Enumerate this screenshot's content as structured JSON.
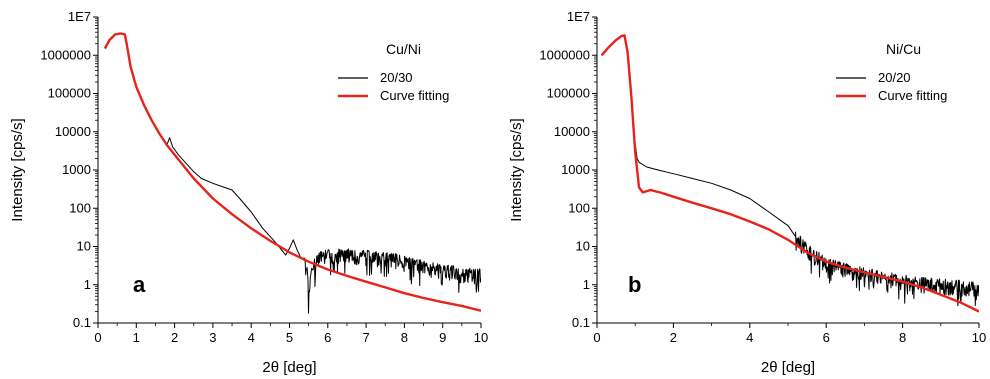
{
  "chart_data": [
    {
      "type": "line",
      "panel_label": "a",
      "xlabel": "2θ [deg]",
      "ylabel": "Intensity [cps/s]",
      "xlim": [
        0,
        10
      ],
      "ylim": [
        0.1,
        10000000
      ],
      "y_scale": "log",
      "x_ticks": [
        "0",
        "1",
        "2",
        "3",
        "4",
        "5",
        "6",
        "7",
        "8",
        "9",
        "10"
      ],
      "y_ticks": [
        "0.1",
        "1",
        "10",
        "100",
        "1000",
        "10000",
        "100000",
        "1000000",
        "1E7"
      ],
      "legend_title": "Cu/Ni",
      "legend_placement": "top-right",
      "grid": false,
      "series": [
        {
          "name": "20/30",
          "color": "#000000",
          "x": [
            0.18,
            0.3,
            0.45,
            0.6,
            0.7,
            0.75,
            0.85,
            1.0,
            1.2,
            1.4,
            1.6,
            1.8,
            1.87,
            1.95,
            2.1,
            2.3,
            2.5,
            2.7,
            3.0,
            3.3,
            3.5,
            3.7,
            4.0,
            4.3,
            4.6,
            4.8,
            4.9,
            5.0,
            5.1,
            5.2,
            5.3,
            5.45,
            5.5,
            5.6,
            5.8,
            6.0,
            6.3,
            6.6,
            7.0,
            7.5,
            8.0,
            8.5,
            9.0,
            9.5,
            10.0
          ],
          "y": [
            1500000,
            2500000,
            3500000,
            3700000,
            3500000,
            2000000,
            500000,
            150000,
            50000,
            20000,
            9000,
            4500,
            7000,
            4000,
            2500,
            1500,
            900,
            600,
            450,
            350,
            300,
            180,
            80,
            30,
            14,
            8,
            6,
            9,
            15,
            8,
            5,
            3,
            0.5,
            3,
            5,
            6,
            6,
            6,
            5.5,
            5,
            4,
            3,
            2.5,
            2,
            1.8
          ],
          "noisy_from_x": 5.4
        },
        {
          "name": "Curve fitting",
          "color": "#e8231b",
          "x": [
            0.18,
            0.3,
            0.45,
            0.6,
            0.7,
            0.75,
            0.85,
            1.0,
            1.2,
            1.4,
            1.6,
            1.8,
            2.0,
            2.5,
            3.0,
            3.5,
            4.0,
            4.5,
            5.0,
            5.5,
            6.0,
            6.5,
            7.0,
            7.5,
            8.0,
            8.5,
            9.0,
            9.5,
            10.0
          ],
          "y": [
            1500000,
            2500000,
            3500000,
            3700000,
            3500000,
            2000000,
            500000,
            150000,
            50000,
            20000,
            9000,
            4500,
            2500,
            600,
            180,
            70,
            30,
            14,
            7,
            4,
            2.5,
            1.7,
            1.2,
            0.85,
            0.6,
            0.45,
            0.35,
            0.28,
            0.21
          ]
        }
      ]
    },
    {
      "type": "line",
      "panel_label": "b",
      "xlabel": "2θ [deg]",
      "ylabel": "Intensity [cps/s]",
      "xlim": [
        0,
        10
      ],
      "ylim": [
        0.1,
        10000000
      ],
      "y_scale": "log",
      "x_ticks": [
        "0",
        "2",
        "4",
        "6",
        "8",
        "10"
      ],
      "y_ticks": [
        "0.1",
        "1",
        "10",
        "100",
        "1000",
        "10000",
        "100000",
        "1000000",
        "1E7"
      ],
      "legend_title": "Ni/Cu",
      "legend_placement": "top-right",
      "grid": false,
      "series": [
        {
          "name": "20/20",
          "color": "#000000",
          "x": [
            0.12,
            0.3,
            0.5,
            0.65,
            0.72,
            0.8,
            0.9,
            1.0,
            1.05,
            1.1,
            1.3,
            1.6,
            2.0,
            2.5,
            3.0,
            3.5,
            4.0,
            4.5,
            5.0,
            5.2,
            5.5,
            5.8,
            6.0,
            6.5,
            7.0,
            7.5,
            8.0,
            8.5,
            9.0,
            9.5,
            10.0
          ],
          "y": [
            1000000,
            1600000,
            2500000,
            3200000,
            3300000,
            1200000,
            80000,
            5000,
            2000,
            1600,
            1200,
            1000,
            800,
            600,
            450,
            300,
            180,
            80,
            35,
            18,
            8,
            5,
            3.5,
            2.5,
            2,
            1.6,
            1.3,
            1.1,
            1,
            0.9,
            0.8
          ],
          "noisy_from_x": 5.2
        },
        {
          "name": "Curve fitting",
          "color": "#e8231b",
          "x": [
            0.12,
            0.3,
            0.5,
            0.65,
            0.72,
            0.8,
            0.9,
            1.0,
            1.1,
            1.2,
            1.4,
            1.7,
            2.0,
            2.5,
            3.0,
            3.5,
            4.0,
            4.5,
            5.0,
            5.5,
            6.0,
            6.5,
            7.0,
            7.5,
            8.0,
            8.5,
            9.0,
            9.5,
            10.0
          ],
          "y": [
            1000000,
            1600000,
            2500000,
            3200000,
            3300000,
            1200000,
            80000,
            3000,
            350,
            260,
            300,
            250,
            200,
            140,
            100,
            70,
            45,
            28,
            15,
            7,
            4,
            2.8,
            2.1,
            1.6,
            1.2,
            0.85,
            0.55,
            0.35,
            0.2
          ]
        }
      ]
    }
  ]
}
